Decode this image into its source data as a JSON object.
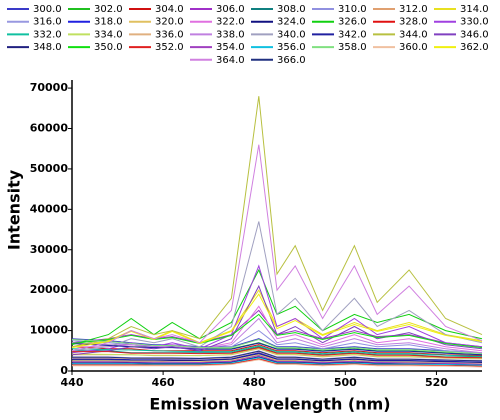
{
  "chart_data": {
    "type": "line",
    "x_label": "Emission Wavelength (nm)",
    "y_label": "Intensity",
    "xlim": [
      440,
      530
    ],
    "xticks": [
      440,
      460,
      480,
      500,
      520
    ],
    "ylim": [
      0,
      72000
    ],
    "yticks": [
      0,
      10000,
      20000,
      30000,
      40000,
      50000,
      60000,
      70000
    ],
    "x": [
      440,
      448,
      453,
      458,
      462,
      468,
      475,
      481,
      485,
      489,
      495,
      502,
      507,
      514,
      522,
      530
    ],
    "series": [
      {
        "name": "300.0",
        "color": "#3a3ac8",
        "values": [
          8000,
          7500,
          7000,
          6500,
          6500,
          6000,
          6000,
          8000,
          6000,
          6000,
          5500,
          6000,
          5500,
          5500,
          5000,
          4500
        ]
      },
      {
        "name": "302.0",
        "color": "#20c020",
        "values": [
          7000,
          6500,
          6000,
          6000,
          6000,
          5500,
          5500,
          7000,
          5500,
          5500,
          5000,
          5500,
          5000,
          5000,
          4500,
          4000
        ]
      },
      {
        "name": "304.0",
        "color": "#d01010",
        "values": [
          6000,
          5500,
          5500,
          5000,
          5000,
          5000,
          5000,
          6500,
          5000,
          5000,
          4500,
          5000,
          4500,
          4500,
          4000,
          3800
        ]
      },
      {
        "name": "306.0",
        "color": "#a030c8",
        "values": [
          7000,
          8000,
          9000,
          8000,
          8500,
          7000,
          9000,
          15000,
          9000,
          10000,
          8000,
          10000,
          8500,
          9000,
          7000,
          6000
        ]
      },
      {
        "name": "308.0",
        "color": "#108080",
        "values": [
          5000,
          5000,
          4500,
          4500,
          4500,
          4500,
          4500,
          6000,
          4500,
          4500,
          4000,
          4500,
          4000,
          4000,
          3500,
          3500
        ]
      },
      {
        "name": "310.0",
        "color": "#9090e0",
        "values": [
          7500,
          7000,
          6500,
          6000,
          6000,
          5500,
          6000,
          10000,
          6500,
          7000,
          5500,
          7000,
          6000,
          6500,
          5000,
          4500
        ]
      },
      {
        "name": "312.0",
        "color": "#e0a070",
        "values": [
          4000,
          4000,
          4000,
          3800,
          3800,
          3800,
          4000,
          5500,
          4000,
          4000,
          3500,
          4000,
          3500,
          3500,
          3200,
          3000
        ]
      },
      {
        "name": "314.0",
        "color": "#e8e020",
        "values": [
          6000,
          7500,
          10000,
          8000,
          10000,
          7000,
          10000,
          20000,
          11000,
          13000,
          9000,
          12000,
          10000,
          12000,
          9000,
          7500
        ]
      },
      {
        "name": "316.0",
        "color": "#9898e0",
        "values": [
          3500,
          3500,
          3300,
          3300,
          3300,
          3200,
          3500,
          5000,
          3500,
          3500,
          3000,
          3500,
          3000,
          3000,
          2800,
          2600
        ]
      },
      {
        "name": "318.0",
        "color": "#2020e0",
        "values": [
          3000,
          3000,
          2800,
          2800,
          2800,
          2700,
          3000,
          4500,
          3000,
          3000,
          2600,
          3000,
          2600,
          2600,
          2400,
          2200
        ]
      },
      {
        "name": "320.0",
        "color": "#e0c060",
        "values": [
          2500,
          2500,
          2400,
          2400,
          2300,
          2300,
          2600,
          4000,
          2600,
          2600,
          2200,
          2600,
          2200,
          2200,
          2000,
          1800
        ]
      },
      {
        "name": "322.0",
        "color": "#e070e0",
        "values": [
          6000,
          6000,
          6500,
          6000,
          6500,
          5500,
          7000,
          16000,
          8000,
          9000,
          6500,
          9000,
          7000,
          8000,
          6000,
          5000
        ]
      },
      {
        "name": "324.0",
        "color": "#101080",
        "values": [
          2000,
          2000,
          2000,
          1900,
          1900,
          1900,
          2200,
          3500,
          2200,
          2200,
          1900,
          2200,
          1900,
          1800,
          1700,
          1500
        ]
      },
      {
        "name": "326.0",
        "color": "#10d010",
        "values": [
          6500,
          9000,
          13000,
          9000,
          12000,
          8000,
          12000,
          25000,
          14000,
          16000,
          10000,
          14000,
          12000,
          14000,
          10000,
          8000
        ]
      },
      {
        "name": "328.0",
        "color": "#e01010",
        "values": [
          1500,
          1500,
          1500,
          1500,
          1500,
          1500,
          1800,
          3000,
          1800,
          1800,
          1500,
          1800,
          1500,
          1500,
          1400,
          1200
        ]
      },
      {
        "name": "330.0",
        "color": "#a040e0",
        "values": [
          4500,
          5500,
          7000,
          6000,
          7000,
          5500,
          9000,
          26000,
          11000,
          13000,
          8000,
          13000,
          9000,
          11000,
          7000,
          6000
        ]
      },
      {
        "name": "332.0",
        "color": "#10c0a0",
        "values": [
          5500,
          5300,
          5200,
          5000,
          4900,
          4800,
          4800,
          6200,
          4800,
          4800,
          4300,
          4800,
          4300,
          4300,
          3900,
          3600
        ]
      },
      {
        "name": "334.0",
        "color": "#c0e060",
        "values": [
          4200,
          4100,
          4000,
          3900,
          3900,
          3800,
          4100,
          5600,
          4100,
          4100,
          3600,
          4100,
          3600,
          3600,
          3300,
          3100
        ]
      },
      {
        "name": "336.0",
        "color": "#e0b080",
        "values": [
          3200,
          3200,
          3100,
          3100,
          3000,
          3000,
          3300,
          4800,
          3300,
          3300,
          2900,
          3300,
          2900,
          2900,
          2700,
          2500
        ]
      },
      {
        "name": "338.0",
        "color": "#c080e0",
        "values": [
          7000,
          6500,
          6500,
          6000,
          6000,
          5500,
          6500,
          13000,
          7000,
          8000,
          6000,
          8000,
          6500,
          7000,
          5500,
          4500
        ]
      },
      {
        "name": "340.0",
        "color": "#a0a0c0",
        "values": [
          5000,
          6000,
          8000,
          7000,
          8000,
          6000,
          11000,
          37000,
          14000,
          18000,
          10000,
          18000,
          11000,
          15000,
          9000,
          7000
        ]
      },
      {
        "name": "342.0",
        "color": "#2020a0",
        "values": [
          6800,
          6300,
          6000,
          5800,
          5800,
          5400,
          5400,
          6900,
          5400,
          5400,
          4900,
          5400,
          4900,
          4900,
          4400,
          4000
        ]
      },
      {
        "name": "344.0",
        "color": "#b8c040",
        "values": [
          6000,
          8000,
          11000,
          9000,
          10000,
          8000,
          18000,
          68000,
          24000,
          31000,
          15000,
          31000,
          17000,
          25000,
          13000,
          9000
        ]
      },
      {
        "name": "346.0",
        "color": "#8040c0",
        "values": [
          4000,
          5000,
          6000,
          5500,
          6000,
          5000,
          8000,
          21000,
          9000,
          11000,
          7000,
          11000,
          8000,
          9500,
          6500,
          5500
        ]
      },
      {
        "name": "348.0",
        "color": "#202080",
        "values": [
          2800,
          2800,
          2700,
          2700,
          2600,
          2600,
          2900,
          4300,
          2900,
          2900,
          2500,
          2900,
          2500,
          2500,
          2300,
          2100
        ]
      },
      {
        "name": "350.0",
        "color": "#10e010",
        "values": [
          6800,
          7800,
          8800,
          7800,
          8300,
          6800,
          8800,
          14000,
          8800,
          9500,
          7800,
          9500,
          8300,
          8800,
          6800,
          5800
        ]
      },
      {
        "name": "352.0",
        "color": "#e02020",
        "values": [
          4800,
          4800,
          4400,
          4400,
          4400,
          4300,
          4400,
          5800,
          4400,
          4400,
          3900,
          4400,
          3900,
          3900,
          3400,
          3300
        ]
      },
      {
        "name": "354.0",
        "color": "#a040c0",
        "values": [
          2300,
          2300,
          2200,
          2200,
          2200,
          2100,
          2400,
          3800,
          2400,
          2400,
          2100,
          2400,
          2100,
          2000,
          1900,
          1700
        ]
      },
      {
        "name": "356.0",
        "color": "#10c0e0",
        "values": [
          1800,
          1800,
          1800,
          1700,
          1700,
          1700,
          2000,
          3300,
          2000,
          2000,
          1700,
          2000,
          1700,
          1700,
          1600,
          1400
        ]
      },
      {
        "name": "358.0",
        "color": "#80e080",
        "values": [
          7800,
          7300,
          6800,
          6300,
          6300,
          5800,
          5800,
          7800,
          5800,
          5800,
          5300,
          5800,
          5300,
          5300,
          4800,
          4300
        ]
      },
      {
        "name": "360.0",
        "color": "#f0c0a0",
        "values": [
          1300,
          1300,
          1300,
          1300,
          1300,
          1300,
          1600,
          2800,
          1600,
          1600,
          1300,
          1600,
          1300,
          1300,
          1200,
          1000
        ]
      },
      {
        "name": "362.0",
        "color": "#f0f010",
        "values": [
          5800,
          7300,
          9800,
          7800,
          9800,
          6800,
          9800,
          19000,
          10500,
          12500,
          8800,
          11500,
          9800,
          11500,
          8800,
          7300
        ]
      },
      {
        "name": "364.0",
        "color": "#d080e0",
        "values": [
          5000,
          7000,
          10000,
          8000,
          9000,
          7000,
          15000,
          56000,
          20000,
          26000,
          13000,
          26000,
          14000,
          21000,
          11000,
          7500
        ]
      },
      {
        "name": "366.0",
        "color": "#203080",
        "values": [
          3400,
          3400,
          3200,
          3200,
          3200,
          3100,
          3400,
          4900,
          3400,
          3400,
          2900,
          3400,
          2900,
          2900,
          2700,
          2500
        ]
      }
    ]
  }
}
